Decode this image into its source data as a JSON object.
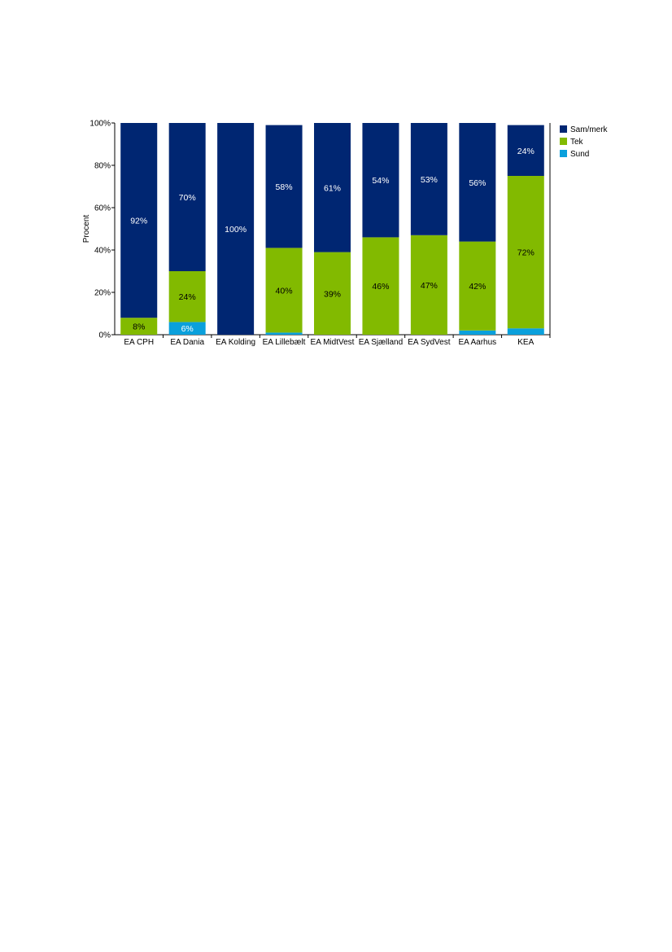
{
  "chart_data": {
    "type": "bar",
    "stacked": true,
    "title": "",
    "xlabel": "",
    "ylabel": "Procent",
    "ylim": [
      0,
      100
    ],
    "yticks": [
      "0%",
      "20%",
      "40%",
      "60%",
      "80%",
      "100%"
    ],
    "ytick_values": [
      0,
      20,
      40,
      60,
      80,
      100
    ],
    "legend_position": "right",
    "grid": false,
    "categories": [
      "EA CPH",
      "EA Dania",
      "EA Kolding",
      "EA Lillebælt",
      "EA MidtVest",
      "EA Sjælland",
      "EA SydVest",
      "EA Aarhus",
      "KEA"
    ],
    "series": [
      {
        "name": "Sund",
        "color": "#0aa0dc",
        "values": [
          0,
          6,
          0,
          1,
          0,
          0,
          0,
          2,
          3
        ],
        "labels": [
          "",
          "6%",
          "",
          "",
          "",
          "",
          "",
          "",
          ""
        ]
      },
      {
        "name": "Tek",
        "color": "#82ba00",
        "values": [
          8,
          24,
          0,
          40,
          39,
          46,
          47,
          42,
          72
        ],
        "labels": [
          "8%",
          "24%",
          "",
          "40%",
          "39%",
          "46%",
          "47%",
          "42%",
          "72%"
        ]
      },
      {
        "name": "Sam/merk",
        "color": "#002672",
        "values": [
          92,
          70,
          100,
          58,
          61,
          54,
          53,
          56,
          24
        ],
        "labels": [
          "92%",
          "70%",
          "100%",
          "58%",
          "61%",
          "54%",
          "53%",
          "56%",
          "24%"
        ]
      }
    ],
    "legend_order": [
      "Sam/merk",
      "Tek",
      "Sund"
    ]
  }
}
